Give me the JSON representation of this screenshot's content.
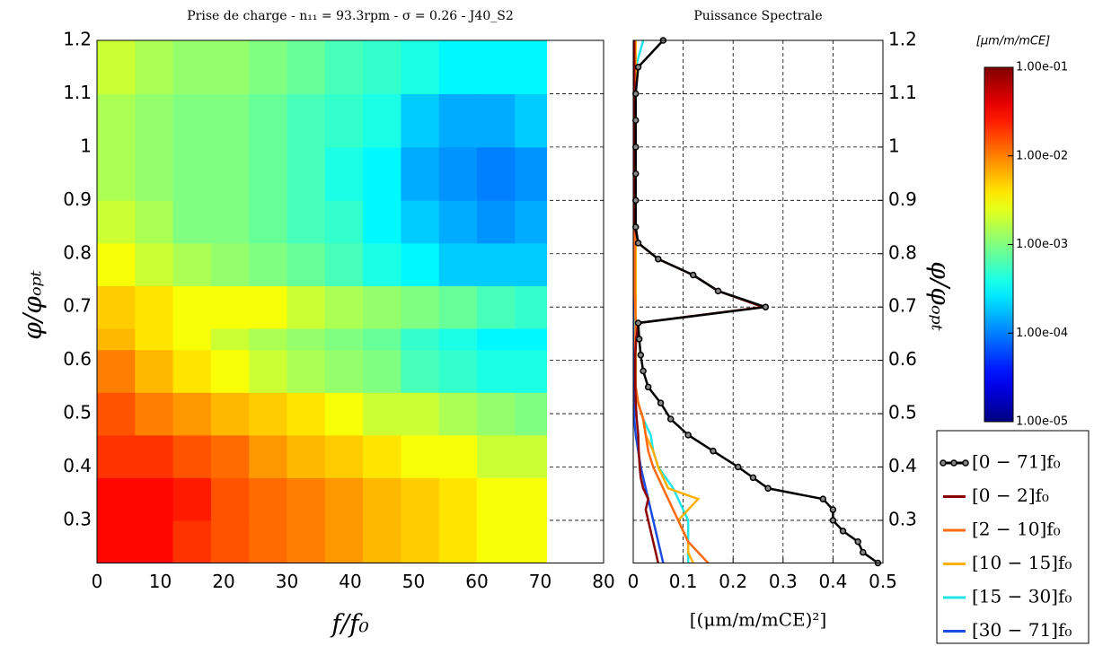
{
  "chart_data": [
    {
      "type": "heatmap",
      "title": "Prise de charge - n₁₁ = 93.3rpm - σ = 0.26 - J40_S2",
      "xlabel": "f/f₀",
      "ylabel": "φ/φₒₚₜ",
      "xlim": [
        0,
        80
      ],
      "xticks": [
        0,
        10,
        20,
        30,
        40,
        50,
        60,
        70,
        80
      ],
      "ylim": [
        0.22,
        1.2
      ],
      "yticks": [
        0.3,
        0.4,
        0.5,
        0.6,
        0.7,
        0.8,
        0.9,
        1,
        1.1,
        1.2
      ],
      "grid": true,
      "x_edges": [
        0,
        6,
        12,
        18,
        24,
        30,
        36,
        42,
        48,
        54,
        60,
        66,
        71
      ],
      "y_edges": [
        0.22,
        0.3,
        0.38,
        0.46,
        0.54,
        0.62,
        0.66,
        0.74,
        0.82,
        0.9,
        1.0,
        1.1,
        1.2
      ],
      "z": [
        [
          0.03,
          0.03,
          0.02,
          0.015,
          0.012,
          0.01,
          0.008,
          0.006,
          0.005,
          0.004,
          0.003,
          0.003
        ],
        [
          0.03,
          0.03,
          0.025,
          0.015,
          0.012,
          0.01,
          0.008,
          0.006,
          0.005,
          0.004,
          0.003,
          0.003
        ],
        [
          0.02,
          0.02,
          0.015,
          0.012,
          0.008,
          0.006,
          0.005,
          0.004,
          0.003,
          0.003,
          0.002,
          0.002
        ],
        [
          0.015,
          0.01,
          0.008,
          0.006,
          0.005,
          0.004,
          0.003,
          0.002,
          0.002,
          0.0015,
          0.0012,
          0.001
        ],
        [
          0.01,
          0.006,
          0.004,
          0.003,
          0.002,
          0.0015,
          0.0012,
          0.001,
          0.0006,
          0.0005,
          0.0004,
          0.0004
        ],
        [
          0.006,
          0.004,
          0.003,
          0.002,
          0.0015,
          0.0012,
          0.001,
          0.0008,
          0.0005,
          0.0004,
          0.0003,
          0.0003
        ],
        [
          0.005,
          0.004,
          0.003,
          0.003,
          0.003,
          0.002,
          0.0015,
          0.0012,
          0.001,
          0.0008,
          0.0006,
          0.0005
        ],
        [
          0.003,
          0.002,
          0.0015,
          0.0012,
          0.001,
          0.0008,
          0.0006,
          0.0004,
          0.0003,
          0.0002,
          0.0002,
          0.0002
        ],
        [
          0.002,
          0.0015,
          0.001,
          0.001,
          0.0008,
          0.0006,
          0.0005,
          0.0003,
          0.0002,
          0.00015,
          0.00012,
          0.00015
        ],
        [
          0.0015,
          0.0012,
          0.001,
          0.001,
          0.0008,
          0.0006,
          0.0004,
          0.0003,
          0.00015,
          0.00012,
          0.0001,
          0.00012
        ],
        [
          0.0015,
          0.0012,
          0.001,
          0.001,
          0.0008,
          0.0006,
          0.0005,
          0.0004,
          0.0002,
          0.00015,
          0.00015,
          0.0002
        ],
        [
          0.002,
          0.0015,
          0.0012,
          0.0012,
          0.001,
          0.0008,
          0.0006,
          0.0005,
          0.0004,
          0.0003,
          0.0003,
          0.0003
        ]
      ],
      "colorbar": {
        "label": "[μm/m/mCE]",
        "colormap": "jet",
        "log": true,
        "lim": [
          1e-05,
          0.1
        ],
        "ticks": [
          {
            "value": 1e-05,
            "label": "1.00e-05"
          },
          {
            "value": 0.0001,
            "label": "1.00e-04"
          },
          {
            "value": 0.001,
            "label": "1.00e-03"
          },
          {
            "value": 0.01,
            "label": "1.00e-02"
          },
          {
            "value": 0.1,
            "label": "1.00e-01"
          }
        ]
      }
    },
    {
      "type": "line",
      "orientation": "horizontal",
      "title": "Puissance Spectrale",
      "xlabel": "[(μm/m/mCE)²]",
      "ylabel": "φ/φₒₚₜ",
      "xlim": [
        0,
        0.5
      ],
      "xticks": [
        0,
        0.1,
        0.2,
        0.3,
        0.4,
        0.5
      ],
      "ylim": [
        0.22,
        1.2
      ],
      "yticks": [
        0.3,
        0.4,
        0.5,
        0.6,
        0.7,
        0.8,
        0.9,
        1,
        1.1,
        1.2
      ],
      "grid": true,
      "legend": "lower right",
      "y": [
        0.22,
        0.24,
        0.26,
        0.28,
        0.3,
        0.32,
        0.34,
        0.36,
        0.38,
        0.4,
        0.43,
        0.46,
        0.49,
        0.52,
        0.55,
        0.58,
        0.61,
        0.64,
        0.67,
        0.7,
        0.73,
        0.76,
        0.79,
        0.82,
        0.85,
        0.9,
        0.95,
        1.0,
        1.05,
        1.1,
        1.15,
        1.2
      ],
      "series": [
        {
          "name": "[0 − 71]f₀",
          "color": "#000000",
          "marker": true,
          "values": [
            0.49,
            0.46,
            0.45,
            0.42,
            0.4,
            0.4,
            0.38,
            0.27,
            0.24,
            0.21,
            0.16,
            0.11,
            0.075,
            0.055,
            0.03,
            0.02,
            0.015,
            0.012,
            0.01,
            0.265,
            0.17,
            0.12,
            0.05,
            0.01,
            0.005,
            0.005,
            0.005,
            0.005,
            0.005,
            0.005,
            0.01,
            0.06
          ]
        },
        {
          "name": "[0 − 2]f₀",
          "color": "#8b0000",
          "values": [
            0.05,
            0.045,
            0.04,
            0.035,
            0.03,
            0.025,
            0.03,
            0.02,
            0.015,
            0.013,
            0.011,
            0.01,
            0.007,
            0.005,
            0.004,
            0.004,
            0.004,
            0.006,
            0.01,
            0.26,
            0.17,
            0.12,
            0.05,
            0.01,
            0.003,
            0.002,
            0.002,
            0.002,
            0.002,
            0.002,
            0.002,
            0.002
          ]
        },
        {
          "name": "[2 − 10]f₀",
          "color": "#ff6a13",
          "values": [
            0.15,
            0.13,
            0.11,
            0.1,
            0.09,
            0.08,
            0.07,
            0.06,
            0.05,
            0.04,
            0.03,
            0.025,
            0.02,
            0.01,
            0.005,
            0.004,
            0.004,
            0.004,
            0.005,
            0.004,
            0.003,
            0.003,
            0.003,
            0.003,
            0.003,
            0.003,
            0.003,
            0.003,
            0.003,
            0.003,
            0.003,
            0.003
          ]
        },
        {
          "name": "[10 − 15]f₀",
          "color": "#ffb000",
          "values": [
            0.12,
            0.11,
            0.11,
            0.1,
            0.09,
            0.11,
            0.13,
            0.07,
            0.06,
            0.05,
            0.04,
            0.025,
            0.02,
            0.01,
            0.005,
            0.005,
            0.005,
            0.005,
            0.005,
            0.005,
            0.005,
            0.005,
            0.005,
            0.005,
            0.005,
            0.005,
            0.005,
            0.005,
            0.005,
            0.005,
            0.005,
            0.005
          ]
        },
        {
          "name": "[15 − 30]f₀",
          "color": "#22e5e5",
          "values": [
            0.11,
            0.11,
            0.11,
            0.11,
            0.11,
            0.1,
            0.09,
            0.08,
            0.065,
            0.05,
            0.04,
            0.035,
            0.02,
            0.01,
            0.005,
            0.004,
            0.004,
            0.004,
            0.004,
            0.004,
            0.004,
            0.004,
            0.004,
            0.004,
            0.004,
            0.004,
            0.004,
            0.004,
            0.004,
            0.004,
            0.005,
            0.02
          ]
        },
        {
          "name": "[30 − 71]f₀",
          "color": "#1a4de0",
          "values": [
            0.06,
            0.055,
            0.05,
            0.045,
            0.04,
            0.035,
            0.03,
            0.025,
            0.02,
            0.015,
            0.01,
            0.005,
            0.002,
            0.002,
            0.002,
            0.002,
            0.002,
            0.002,
            0.002,
            0.002,
            0.002,
            0.002,
            0.002,
            0.002,
            0.002,
            0.002,
            0.002,
            0.002,
            0.002,
            0.002,
            0.002,
            0.002
          ]
        }
      ]
    }
  ]
}
